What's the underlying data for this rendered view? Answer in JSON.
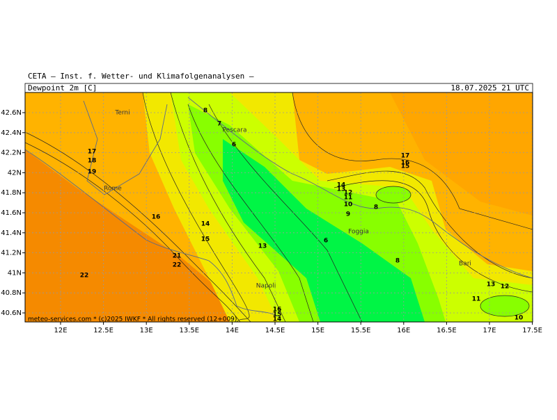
{
  "header": {
    "institute": "CETA — Inst. f. Wetter- und Klimafolgenanalysen —",
    "field": "Dewpoint 2m [C]",
    "time": "18.07.2025 21 UTC"
  },
  "map": {
    "lat_labels": [
      "42.6N",
      "42.4N",
      "42.2N",
      "42N",
      "41.8N",
      "41.6N",
      "41.4N",
      "41.2N",
      "41N",
      "40.8N",
      "40.6N"
    ],
    "lon_labels": [
      "12E",
      "12.5E",
      "13E",
      "13.5E",
      "14E",
      "14.5E",
      "15E",
      "15.5E",
      "16E",
      "16.5E",
      "17E",
      "17.5E"
    ],
    "cities": [
      "Terni",
      "Pescara",
      "Rome",
      "Foggia",
      "Napoli",
      "Bari"
    ],
    "contour_labels": [
      8,
      7,
      6,
      17,
      18,
      19,
      16,
      14,
      15,
      13,
      21,
      22,
      22,
      17,
      16,
      15,
      14,
      13,
      12,
      11,
      10,
      9,
      8,
      6,
      8,
      13,
      12,
      11,
      10,
      16,
      15,
      14
    ]
  },
  "footer": "meteo-services.com * (c)2025 IWKF * All rights reserved (12+009)"
}
